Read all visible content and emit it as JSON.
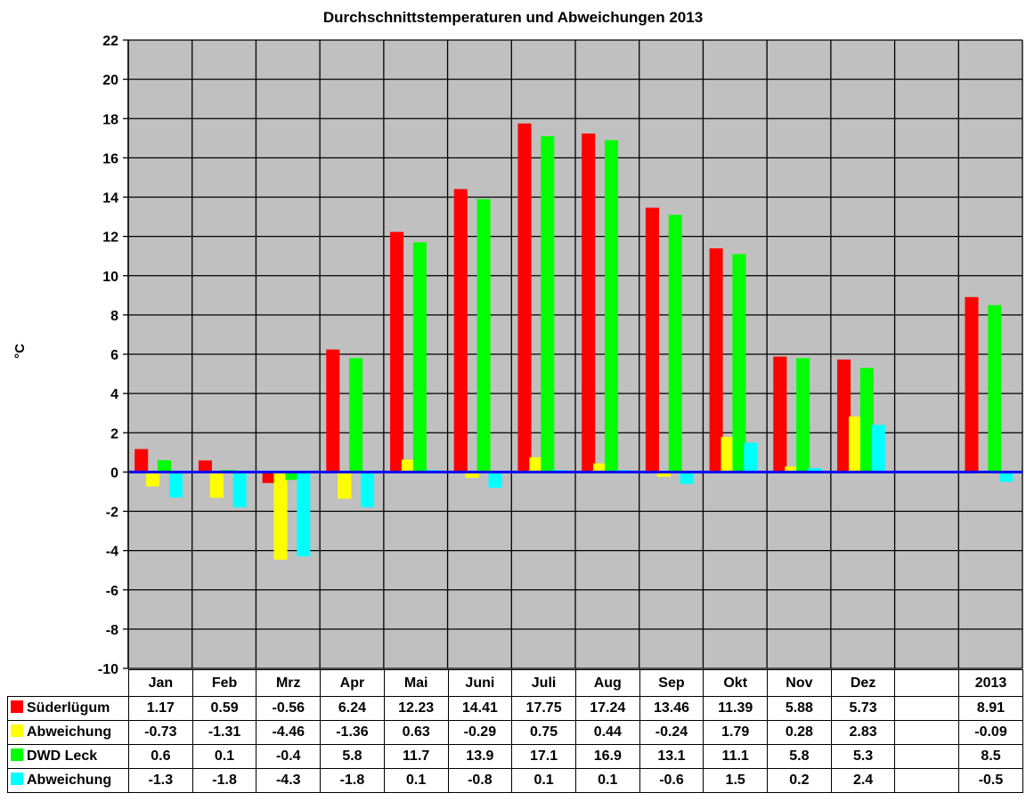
{
  "chart_data": {
    "type": "bar",
    "title": "Durchschnittstemperaturen und Abweichungen 2013",
    "xlabel": "",
    "ylabel": "°C",
    "ylim": [
      -10,
      22
    ],
    "yticks": [
      22,
      20,
      18,
      16,
      14,
      12,
      10,
      8,
      6,
      4,
      2,
      0,
      -2,
      -4,
      -6,
      -8,
      -10
    ],
    "grid": true,
    "legend_position": "data-table-left",
    "categories": [
      "Jan",
      "Feb",
      "Mrz",
      "Apr",
      "Mai",
      "Juni",
      "Juli",
      "Aug",
      "Sep",
      "Okt",
      "Nov",
      "Dez",
      "",
      "2013"
    ],
    "series": [
      {
        "name": "Süderlügum",
        "color": "#ff0000",
        "values": [
          1.17,
          0.59,
          -0.56,
          6.24,
          12.23,
          14.41,
          17.75,
          17.24,
          13.46,
          11.39,
          5.88,
          5.73,
          null,
          8.91
        ]
      },
      {
        "name": "Abweichung",
        "color": "#ffff00",
        "values": [
          -0.73,
          -1.31,
          -4.46,
          -1.36,
          0.63,
          -0.29,
          0.75,
          0.44,
          -0.24,
          1.79,
          0.28,
          2.83,
          null,
          -0.09
        ]
      },
      {
        "name": "DWD Leck",
        "color": "#00ff00",
        "values": [
          0.6,
          0.1,
          -0.4,
          5.8,
          11.7,
          13.9,
          17.1,
          16.9,
          13.1,
          11.1,
          5.8,
          5.3,
          null,
          8.5
        ]
      },
      {
        "name": "Abweichung",
        "color": "#00ffff",
        "values": [
          -1.3,
          -1.8,
          -4.3,
          -1.8,
          0.1,
          -0.8,
          0.1,
          0.1,
          -0.6,
          1.5,
          0.2,
          2.4,
          null,
          -0.5
        ]
      }
    ]
  },
  "table": {
    "headers": [
      "Jan",
      "Feb",
      "Mrz",
      "Apr",
      "Mai",
      "Juni",
      "Juli",
      "Aug",
      "Sep",
      "Okt",
      "Nov",
      "Dez",
      "",
      "2013"
    ],
    "rows": [
      {
        "label": "Süderlügum",
        "cells": [
          "1.17",
          "0.59",
          "-0.56",
          "6.24",
          "12.23",
          "14.41",
          "17.75",
          "17.24",
          "13.46",
          "11.39",
          "5.88",
          "5.73",
          "",
          "8.91"
        ]
      },
      {
        "label": "Abweichung",
        "cells": [
          "-0.73",
          "-1.31",
          "-4.46",
          "-1.36",
          "0.63",
          "-0.29",
          "0.75",
          "0.44",
          "-0.24",
          "1.79",
          "0.28",
          "2.83",
          "",
          "-0.09"
        ]
      },
      {
        "label": "DWD Leck",
        "cells": [
          "0.6",
          "0.1",
          "-0.4",
          "5.8",
          "11.7",
          "13.9",
          "17.1",
          "16.9",
          "13.1",
          "11.1",
          "5.8",
          "5.3",
          "",
          "8.5"
        ]
      },
      {
        "label": "Abweichung",
        "cells": [
          "-1.3",
          "-1.8",
          "-4.3",
          "-1.8",
          "0.1",
          "-0.8",
          "0.1",
          "0.1",
          "-0.6",
          "1.5",
          "0.2",
          "2.4",
          "",
          "-0.5"
        ]
      }
    ]
  },
  "colors": {
    "plot_bg": "#c0c0c0",
    "zero_line": "#0000ff",
    "grid": "#000000"
  }
}
